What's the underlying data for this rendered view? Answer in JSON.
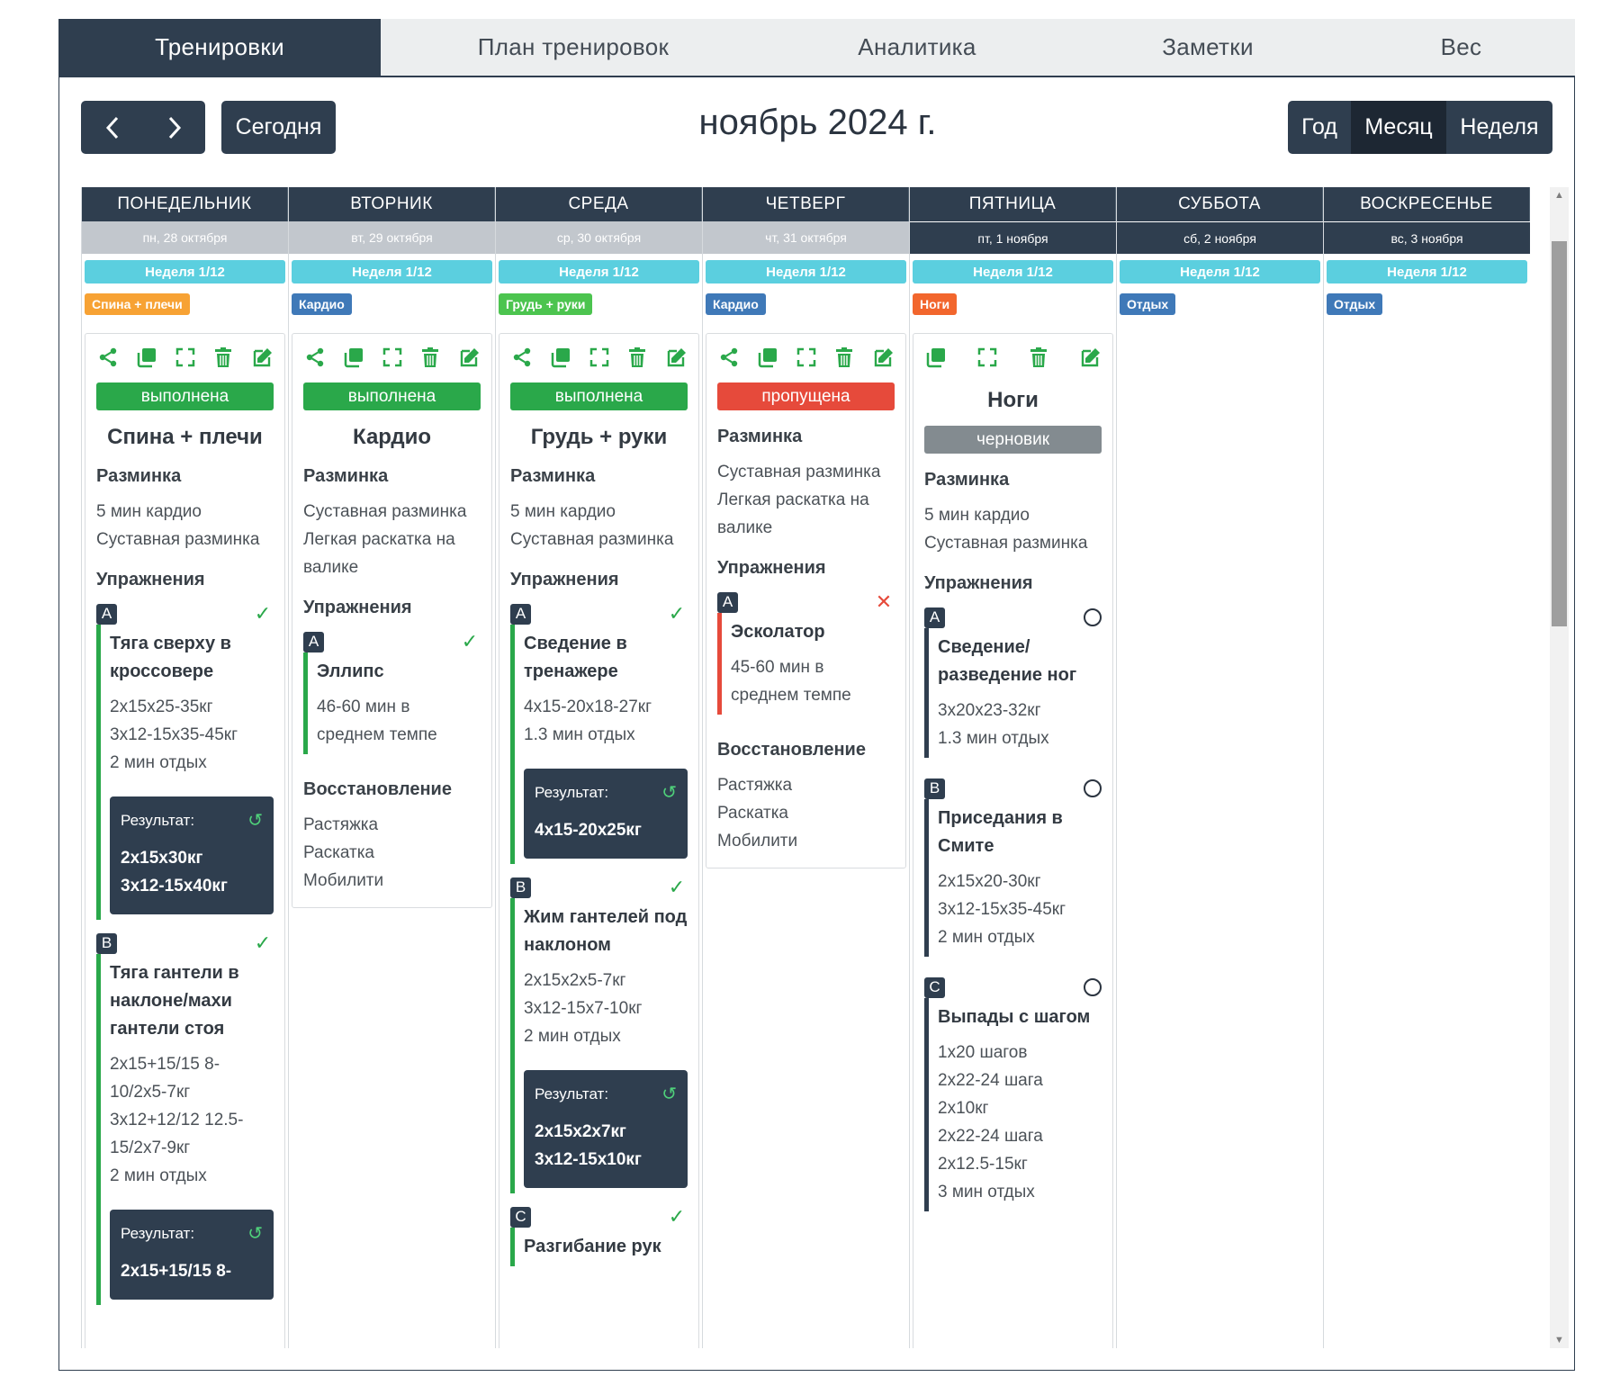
{
  "nav_tabs": [
    {
      "label": "Тренировки",
      "active": true
    },
    {
      "label": "План тренировок",
      "active": false
    },
    {
      "label": "Аналитика",
      "active": false
    },
    {
      "label": "Заметки",
      "active": false
    },
    {
      "label": "Вес",
      "active": false
    }
  ],
  "toolbar": {
    "today_label": "Сегодня",
    "month_title": "ноябрь 2024 г.",
    "views": [
      {
        "label": "Год",
        "active": false
      },
      {
        "label": "Месяц",
        "active": true
      },
      {
        "label": "Неделя",
        "active": false
      }
    ]
  },
  "colors": {
    "primary_dark": "#2f3e4f",
    "success": "#2aa84a",
    "danger": "#e64a3b",
    "draft": "#838b90",
    "week_badge": "#5bcfdf",
    "tag_orange": "#f7a234",
    "tag_green": "#4cc44f",
    "tag_blue": "#3f79b8",
    "tag_red_orange": "#f2662d"
  },
  "days": [
    {
      "name": "ПОНЕДЕЛЬНИК",
      "date": "пн, 28 октября",
      "week": "Неделя 1/12",
      "tag": "Спина + плечи",
      "workout": {
        "status": "выполнена",
        "title": "Спина + плечи",
        "warmup_label": "Разминка",
        "warmup": [
          "5 мин кардио",
          "Суставная разминка"
        ],
        "exercises_label": "Упражнения",
        "exercises": [
          {
            "letter": "A",
            "name": "Тяга сверху в кроссовере",
            "details": [
              "2x15x25-35кг",
              "3x12-15x35-45кг",
              "2 мин отдых"
            ],
            "result_label": "Результат:",
            "result": [
              "2x15x30кг",
              "3x12-15x40кг"
            ]
          },
          {
            "letter": "B",
            "name": "Тяга гантели в наклоне/махи гантели стоя",
            "details": [
              "2x15+15/15 8-10/2x5-7кг",
              "3x12+12/12 12.5-15/2x7-9кг",
              "2 мин отдых"
            ],
            "result_label": "Результат:",
            "result": [
              "2x15+15/15 8-"
            ]
          }
        ]
      }
    },
    {
      "name": "ВТОРНИК",
      "date": "вт, 29 октября",
      "week": "Неделя 1/12",
      "tag": "Кардио",
      "workout": {
        "status": "выполнена",
        "title": "Кардио",
        "warmup_label": "Разминка",
        "warmup": [
          "Суставная разминка",
          "Легкая раскатка на валике"
        ],
        "exercises_label": "Упражнения",
        "exercises": [
          {
            "letter": "A",
            "name": "Эллипс",
            "details": [
              "46-60 мин в среднем темпе"
            ]
          }
        ],
        "recovery_label": "Восстановление",
        "recovery": [
          "Растяжка",
          "Раскатка",
          "Мобилити"
        ]
      }
    },
    {
      "name": "СРЕДА",
      "date": "ср, 30 октября",
      "week": "Неделя 1/12",
      "tag": "Грудь + руки",
      "workout": {
        "status": "выполнена",
        "title": "Грудь + руки",
        "warmup_label": "Разминка",
        "warmup": [
          "5 мин кардио",
          "Суставная разминка"
        ],
        "exercises_label": "Упражнения",
        "exercises": [
          {
            "letter": "A",
            "name": "Сведение в тренажере",
            "details": [
              "4x15-20x18-27кг",
              "1.3 мин отдых"
            ],
            "result_label": "Результат:",
            "result": [
              "4x15-20x25кг"
            ]
          },
          {
            "letter": "B",
            "name": "Жим гантелей под наклоном",
            "details": [
              "2x15x2x5-7кг",
              "3x12-15x7-10кг",
              "2 мин отдых"
            ],
            "result_label": "Результат:",
            "result": [
              "2x15x2x7кг",
              "3x12-15x10кг"
            ]
          },
          {
            "letter": "C",
            "name": "Разгибание рук"
          }
        ]
      }
    },
    {
      "name": "ЧЕТВЕРГ",
      "date": "чт, 31 октября",
      "week": "Неделя 1/12",
      "tag": "Кардио",
      "workout": {
        "status": "пропущена",
        "warmup_label": "Разминка",
        "warmup": [
          "Суставная разминка",
          "Легкая раскатка на валике"
        ],
        "exercises_label": "Упражнения",
        "exercises": [
          {
            "letter": "A",
            "name": "Эсколатор",
            "details": [
              "45-60 мин в среднем темпе"
            ]
          }
        ],
        "recovery_label": "Восстановление",
        "recovery": [
          "Растяжка",
          "Раскатка",
          "Мобилити"
        ]
      }
    },
    {
      "name": "ПЯТНИЦА",
      "date": "пт, 1 ноября",
      "week": "Неделя 1/12",
      "tag": "Ноги",
      "workout": {
        "title": "Ноги",
        "status": "черновик",
        "warmup_label": "Разминка",
        "warmup": [
          "5 мин кардио",
          "Суставная разминка"
        ],
        "exercises_label": "Упражнения",
        "exercises": [
          {
            "letter": "A",
            "name": "Сведение/ разведение ног",
            "details": [
              "3x20x23-32кг",
              "1.3 мин отдых"
            ]
          },
          {
            "letter": "B",
            "name": "Приседания в Смите",
            "details": [
              "2x15x20-30кг",
              "3x12-15x35-45кг",
              "2 мин отдых"
            ]
          },
          {
            "letter": "C",
            "name": "Выпады с шагом",
            "details": [
              "1x20 шагов",
              "2x22-24 шага",
              "2x10кг",
              "2x22-24 шага",
              "2x12.5-15кг",
              "3 мин отдых"
            ]
          }
        ]
      }
    },
    {
      "name": "СУББОТА",
      "date": "сб, 2 ноября",
      "week": "Неделя 1/12",
      "tag": "Отдых"
    },
    {
      "name": "ВОСКРЕСЕНЬЕ",
      "date": "вс, 3 ноября",
      "week": "Неделя 1/12",
      "tag": "Отдых"
    }
  ]
}
